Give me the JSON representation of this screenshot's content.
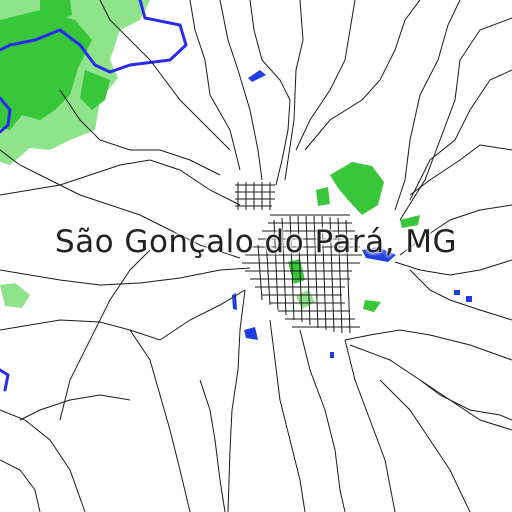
{
  "map": {
    "title": "São Gonçalo do Pará, MG",
    "colors": {
      "background": "#ffffff",
      "road": "#1a1a1a",
      "river": "#2a2af0",
      "water": "#1f3fe0",
      "forest_dark": "#38c63a",
      "forest_light": "#8fe38a"
    }
  }
}
